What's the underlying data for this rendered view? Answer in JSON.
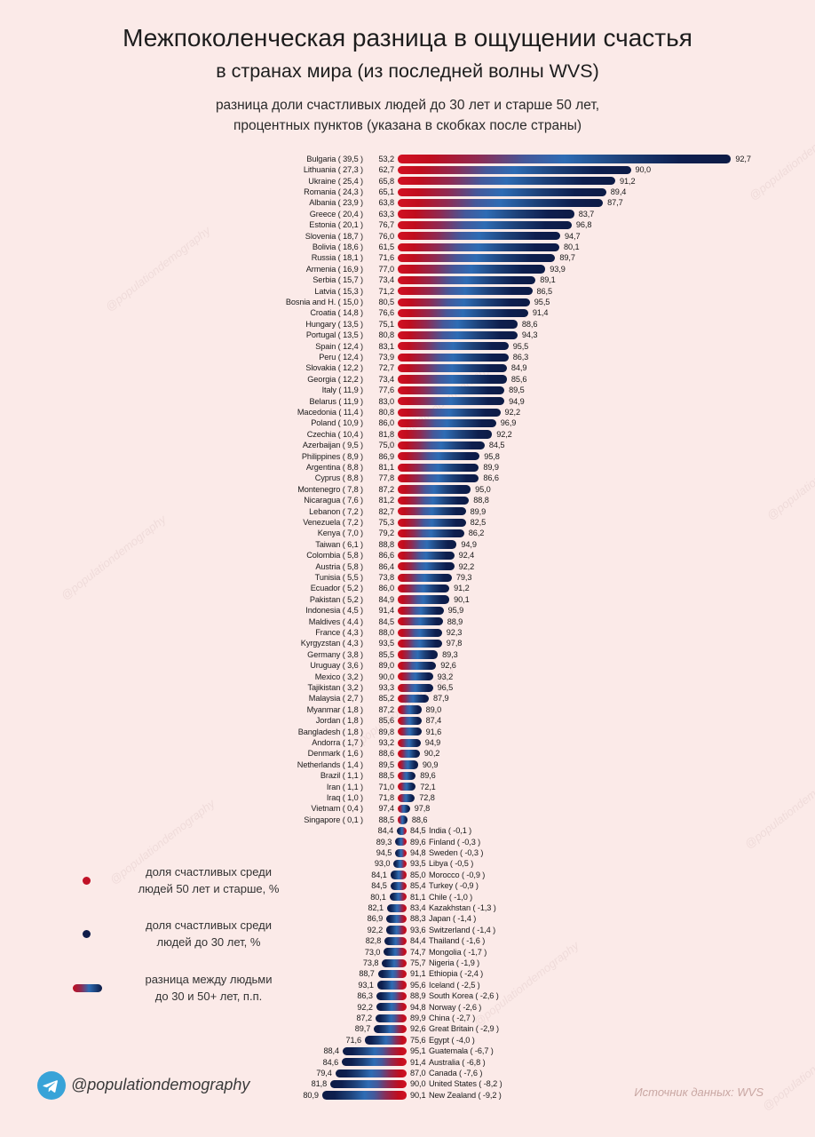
{
  "chart_data": {
    "type": "dumbbell",
    "title": "Межпоколенческая разница в ощущении счастья",
    "title_line2": "в странах мира (из последней волны WVS)",
    "subtitle_line1": "разница доли счастливых людей до 30 лет и старше 50 лет,",
    "subtitle_line2": "процентных пунктов (указана в скобках после страны)",
    "value_unit": "%",
    "diff_unit": "п.п.",
    "legend_position": "bottom-left",
    "grid": false,
    "colors": {
      "age50plus_marker": "#c01126",
      "under30_marker": "#101d4a",
      "gradient_mid_blue": "#2e6cb4",
      "background": "#fbeae8"
    },
    "legend": [
      {
        "marker": "red-dot",
        "lines": [
          "доля счастливых среди",
          "людей 50 лет и старше, %"
        ]
      },
      {
        "marker": "navy-dot",
        "lines": [
          "доля счастливых среди",
          "людей до 30 лет, %"
        ]
      },
      {
        "marker": "gradient-pill",
        "lines": [
          "разница между людьми",
          "до 30 и 50+ лет, п.п."
        ]
      }
    ],
    "rows": [
      {
        "country": "Bulgaria",
        "diff": 39.5,
        "happy_50plus": 53.2,
        "happy_under30": 92.7
      },
      {
        "country": "Lithuania",
        "diff": 27.3,
        "happy_50plus": 62.7,
        "happy_under30": 90.0
      },
      {
        "country": "Ukraine",
        "diff": 25.4,
        "happy_50plus": 65.8,
        "happy_under30": 91.2
      },
      {
        "country": "Romania",
        "diff": 24.3,
        "happy_50plus": 65.1,
        "happy_under30": 89.4
      },
      {
        "country": "Albania",
        "diff": 23.9,
        "happy_50plus": 63.8,
        "happy_under30": 87.7
      },
      {
        "country": "Greece",
        "diff": 20.4,
        "happy_50plus": 63.3,
        "happy_under30": 83.7
      },
      {
        "country": "Estonia",
        "diff": 20.1,
        "happy_50plus": 76.7,
        "happy_under30": 96.8
      },
      {
        "country": "Slovenia",
        "diff": 18.7,
        "happy_50plus": 76.0,
        "happy_under30": 94.7
      },
      {
        "country": "Bolivia",
        "diff": 18.6,
        "happy_50plus": 61.5,
        "happy_under30": 80.1
      },
      {
        "country": "Russia",
        "diff": 18.1,
        "happy_50plus": 71.6,
        "happy_under30": 89.7
      },
      {
        "country": "Armenia",
        "diff": 16.9,
        "happy_50plus": 77.0,
        "happy_under30": 93.9
      },
      {
        "country": "Serbia",
        "diff": 15.7,
        "happy_50plus": 73.4,
        "happy_under30": 89.1
      },
      {
        "country": "Latvia",
        "diff": 15.3,
        "happy_50plus": 71.2,
        "happy_under30": 86.5
      },
      {
        "country": "Bosnia and H.",
        "diff": 15.0,
        "happy_50plus": 80.5,
        "happy_under30": 95.5
      },
      {
        "country": "Croatia",
        "diff": 14.8,
        "happy_50plus": 76.6,
        "happy_under30": 91.4
      },
      {
        "country": "Hungary",
        "diff": 13.5,
        "happy_50plus": 75.1,
        "happy_under30": 88.6
      },
      {
        "country": "Portugal",
        "diff": 13.5,
        "happy_50plus": 80.8,
        "happy_under30": 94.3
      },
      {
        "country": "Spain",
        "diff": 12.4,
        "happy_50plus": 83.1,
        "happy_under30": 95.5
      },
      {
        "country": "Peru",
        "diff": 12.4,
        "happy_50plus": 73.9,
        "happy_under30": 86.3
      },
      {
        "country": "Slovakia",
        "diff": 12.2,
        "happy_50plus": 72.7,
        "happy_under30": 84.9
      },
      {
        "country": "Georgia",
        "diff": 12.2,
        "happy_50plus": 73.4,
        "happy_under30": 85.6
      },
      {
        "country": "Italy",
        "diff": 11.9,
        "happy_50plus": 77.6,
        "happy_under30": 89.5
      },
      {
        "country": "Belarus",
        "diff": 11.9,
        "happy_50plus": 83.0,
        "happy_under30": 94.9
      },
      {
        "country": "Macedonia",
        "diff": 11.4,
        "happy_50plus": 80.8,
        "happy_under30": 92.2
      },
      {
        "country": "Poland",
        "diff": 10.9,
        "happy_50plus": 86.0,
        "happy_under30": 96.9
      },
      {
        "country": "Czechia",
        "diff": 10.4,
        "happy_50plus": 81.8,
        "happy_under30": 92.2
      },
      {
        "country": "Azerbaijan",
        "diff": 9.5,
        "happy_50plus": 75.0,
        "happy_under30": 84.5
      },
      {
        "country": "Philippines",
        "diff": 8.9,
        "happy_50plus": 86.9,
        "happy_under30": 95.8
      },
      {
        "country": "Argentina",
        "diff": 8.8,
        "happy_50plus": 81.1,
        "happy_under30": 89.9
      },
      {
        "country": "Cyprus",
        "diff": 8.8,
        "happy_50plus": 77.8,
        "happy_under30": 86.6
      },
      {
        "country": "Montenegro",
        "diff": 7.8,
        "happy_50plus": 87.2,
        "happy_under30": 95.0
      },
      {
        "country": "Nicaragua",
        "diff": 7.6,
        "happy_50plus": 81.2,
        "happy_under30": 88.8
      },
      {
        "country": "Lebanon",
        "diff": 7.2,
        "happy_50plus": 82.7,
        "happy_under30": 89.9
      },
      {
        "country": "Venezuela",
        "diff": 7.2,
        "happy_50plus": 75.3,
        "happy_under30": 82.5
      },
      {
        "country": "Kenya",
        "diff": 7.0,
        "happy_50plus": 79.2,
        "happy_under30": 86.2
      },
      {
        "country": "Taiwan",
        "diff": 6.1,
        "happy_50plus": 88.8,
        "happy_under30": 94.9
      },
      {
        "country": "Colombia",
        "diff": 5.8,
        "happy_50plus": 86.6,
        "happy_under30": 92.4
      },
      {
        "country": "Austria",
        "diff": 5.8,
        "happy_50plus": 86.4,
        "happy_under30": 92.2
      },
      {
        "country": "Tunisia",
        "diff": 5.5,
        "happy_50plus": 73.8,
        "happy_under30": 79.3
      },
      {
        "country": "Ecuador",
        "diff": 5.2,
        "happy_50plus": 86.0,
        "happy_under30": 91.2
      },
      {
        "country": "Pakistan",
        "diff": 5.2,
        "happy_50plus": 84.9,
        "happy_under30": 90.1
      },
      {
        "country": "Indonesia",
        "diff": 4.5,
        "happy_50plus": 91.4,
        "happy_under30": 95.9
      },
      {
        "country": "Maldives",
        "diff": 4.4,
        "happy_50plus": 84.5,
        "happy_under30": 88.9
      },
      {
        "country": "France",
        "diff": 4.3,
        "happy_50plus": 88.0,
        "happy_under30": 92.3
      },
      {
        "country": "Kyrgyzstan",
        "diff": 4.3,
        "happy_50plus": 93.5,
        "happy_under30": 97.8
      },
      {
        "country": "Germany",
        "diff": 3.8,
        "happy_50plus": 85.5,
        "happy_under30": 89.3
      },
      {
        "country": "Uruguay",
        "diff": 3.6,
        "happy_50plus": 89.0,
        "happy_under30": 92.6
      },
      {
        "country": "Mexico",
        "diff": 3.2,
        "happy_50plus": 90.0,
        "happy_under30": 93.2
      },
      {
        "country": "Tajikistan",
        "diff": 3.2,
        "happy_50plus": 93.3,
        "happy_under30": 96.5
      },
      {
        "country": "Malaysia",
        "diff": 2.7,
        "happy_50plus": 85.2,
        "happy_under30": 87.9
      },
      {
        "country": "Myanmar",
        "diff": 1.8,
        "happy_50plus": 87.2,
        "happy_under30": 89.0
      },
      {
        "country": "Jordan",
        "diff": 1.8,
        "happy_50plus": 85.6,
        "happy_under30": 87.4
      },
      {
        "country": "Bangladesh",
        "diff": 1.8,
        "happy_50plus": 89.8,
        "happy_under30": 91.6
      },
      {
        "country": "Andorra",
        "diff": 1.7,
        "happy_50plus": 93.2,
        "happy_under30": 94.9
      },
      {
        "country": "Denmark",
        "diff": 1.6,
        "happy_50plus": 88.6,
        "happy_under30": 90.2
      },
      {
        "country": "Netherlands",
        "diff": 1.4,
        "happy_50plus": 89.5,
        "happy_under30": 90.9
      },
      {
        "country": "Brazil",
        "diff": 1.1,
        "happy_50plus": 88.5,
        "happy_under30": 89.6
      },
      {
        "country": "Iran",
        "diff": 1.1,
        "happy_50plus": 71.0,
        "happy_under30": 72.1
      },
      {
        "country": "Iraq",
        "diff": 1.0,
        "happy_50plus": 71.8,
        "happy_under30": 72.8
      },
      {
        "country": "Vietnam",
        "diff": 0.4,
        "happy_50plus": 97.4,
        "happy_under30": 97.8
      },
      {
        "country": "Singapore",
        "diff": 0.1,
        "happy_50plus": 88.5,
        "happy_under30": 88.6
      },
      {
        "country": "India",
        "diff": -0.1,
        "happy_50plus": 84.5,
        "happy_under30": 84.4
      },
      {
        "country": "Finland",
        "diff": -0.3,
        "happy_50plus": 89.6,
        "happy_under30": 89.3
      },
      {
        "country": "Sweden",
        "diff": -0.3,
        "happy_50plus": 94.8,
        "happy_under30": 94.5
      },
      {
        "country": "Libya",
        "diff": -0.5,
        "happy_50plus": 93.5,
        "happy_under30": 93.0
      },
      {
        "country": "Morocco",
        "diff": -0.9,
        "happy_50plus": 85.0,
        "happy_under30": 84.1
      },
      {
        "country": "Turkey",
        "diff": -0.9,
        "happy_50plus": 85.4,
        "happy_under30": 84.5
      },
      {
        "country": "Chile",
        "diff": -1.0,
        "happy_50plus": 81.1,
        "happy_under30": 80.1
      },
      {
        "country": "Kazakhstan",
        "diff": -1.3,
        "happy_50plus": 83.4,
        "happy_under30": 82.1
      },
      {
        "country": "Japan",
        "diff": -1.4,
        "happy_50plus": 88.3,
        "happy_under30": 86.9
      },
      {
        "country": "Switzerland",
        "diff": -1.4,
        "happy_50plus": 93.6,
        "happy_under30": 92.2
      },
      {
        "country": "Thailand",
        "diff": -1.6,
        "happy_50plus": 84.4,
        "happy_under30": 82.8
      },
      {
        "country": "Mongolia",
        "diff": -1.7,
        "happy_50plus": 74.7,
        "happy_under30": 73.0
      },
      {
        "country": "Nigeria",
        "diff": -1.9,
        "happy_50plus": 75.7,
        "happy_under30": 73.8
      },
      {
        "country": "Ethiopia",
        "diff": -2.4,
        "happy_50plus": 91.1,
        "happy_under30": 88.7
      },
      {
        "country": "Iceland",
        "diff": -2.5,
        "happy_50plus": 95.6,
        "happy_under30": 93.1
      },
      {
        "country": "South Korea",
        "diff": -2.6,
        "happy_50plus": 88.9,
        "happy_under30": 86.3
      },
      {
        "country": "Norway",
        "diff": -2.6,
        "happy_50plus": 94.8,
        "happy_under30": 92.2
      },
      {
        "country": "China",
        "diff": -2.7,
        "happy_50plus": 89.9,
        "happy_under30": 87.2
      },
      {
        "country": "Great Britain",
        "diff": -2.9,
        "happy_50plus": 92.6,
        "happy_under30": 89.7
      },
      {
        "country": "Egypt",
        "diff": -4.0,
        "happy_50plus": 75.6,
        "happy_under30": 71.6
      },
      {
        "country": "Guatemala",
        "diff": -6.7,
        "happy_50plus": 95.1,
        "happy_under30": 88.4
      },
      {
        "country": "Australia",
        "diff": -6.8,
        "happy_50plus": 91.4,
        "happy_under30": 84.6
      },
      {
        "country": "Canada",
        "diff": -7.6,
        "happy_50plus": 87.0,
        "happy_under30": 79.4
      },
      {
        "country": "United States",
        "diff": -8.2,
        "happy_50plus": 90.0,
        "happy_under30": 81.8
      },
      {
        "country": "New Zealand",
        "diff": -9.2,
        "happy_50plus": 90.1,
        "happy_under30": 80.9
      }
    ]
  },
  "footer": {
    "handle": "@populationdemography",
    "source": "Источник данных: WVS"
  }
}
